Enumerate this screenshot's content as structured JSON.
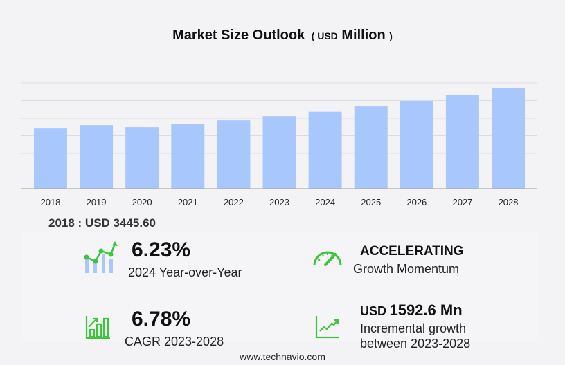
{
  "title": {
    "main": "Market Size Outlook",
    "unit_open": "(",
    "unit": "USD",
    "unit_main": "Million",
    "unit_close": ")"
  },
  "chart_data": {
    "type": "bar",
    "categories": [
      "2018",
      "2019",
      "2020",
      "2021",
      "2022",
      "2023",
      "2024",
      "2025",
      "2026",
      "2027",
      "2028"
    ],
    "values": [
      3445.6,
      3602,
      3484,
      3680,
      3876,
      4111,
      4367,
      4663,
      4979,
      5317,
      5704
    ],
    "ylim": [
      0,
      6000
    ],
    "grid": true,
    "bar_color": "#a8c8fd",
    "xlabel": "",
    "ylabel": ""
  },
  "base_label": "2018 : USD  3445.60",
  "stats": {
    "yoy": {
      "value": "6.23%",
      "label": "2024 Year-over-Year"
    },
    "momentum": {
      "value": "ACCELERATING",
      "label": "Growth Momentum"
    },
    "cagr": {
      "value": "6.78%",
      "label": "CAGR 2023-2028"
    },
    "incremental": {
      "prefix": "USD",
      "value": "1592.6 Mn",
      "label1": "Incremental growth",
      "label2": "between 2023-2028"
    }
  },
  "icons": {
    "yoy": "trend-bar-chart-icon",
    "momentum": "speedometer-icon",
    "cagr": "bar-growth-icon",
    "incremental": "line-growth-icon"
  },
  "accent": "#3cc63c",
  "footer": "www.technavio.com"
}
